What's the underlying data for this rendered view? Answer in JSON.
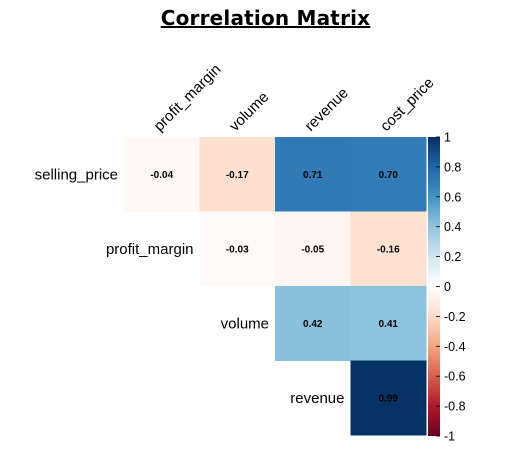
{
  "title": "Correlation Matrix",
  "chart_data": {
    "type": "heatmap",
    "title": "Correlation Matrix",
    "columns": [
      "profit_margin",
      "volume",
      "revenue",
      "cost_price"
    ],
    "rows": [
      "selling_price",
      "profit_margin",
      "volume",
      "revenue"
    ],
    "values": [
      [
        -0.04,
        -0.17,
        0.71,
        0.7
      ],
      [
        null,
        -0.03,
        -0.05,
        -0.16
      ],
      [
        null,
        null,
        0.42,
        0.41
      ],
      [
        null,
        null,
        null,
        0.99
      ]
    ],
    "value_labels": [
      [
        "-0.04",
        "-0.17",
        "0.71",
        "0.70"
      ],
      [
        null,
        "-0.03",
        "-0.05",
        "-0.16"
      ],
      [
        null,
        null,
        "0.42",
        "0.41"
      ],
      [
        null,
        null,
        null,
        "0.99"
      ]
    ],
    "colorbar": {
      "range": [
        -1,
        1
      ],
      "ticks": [
        1,
        0.8,
        0.6,
        0.4,
        0.2,
        0,
        -0.2,
        -0.4,
        -0.6,
        -0.8,
        -1
      ],
      "tick_labels": [
        "1",
        "0.8",
        "0.6",
        "0.4",
        "0.2",
        "0",
        "-0.2",
        "-0.4",
        "-0.6",
        "-0.8",
        "-1"
      ],
      "colors": {
        "neg1": "#67001f",
        "neg05": "#f4a582",
        "zero": "#ffffff",
        "pos05": "#92c5de",
        "pos1": "#053061"
      }
    },
    "layout": "upper-triangle"
  }
}
